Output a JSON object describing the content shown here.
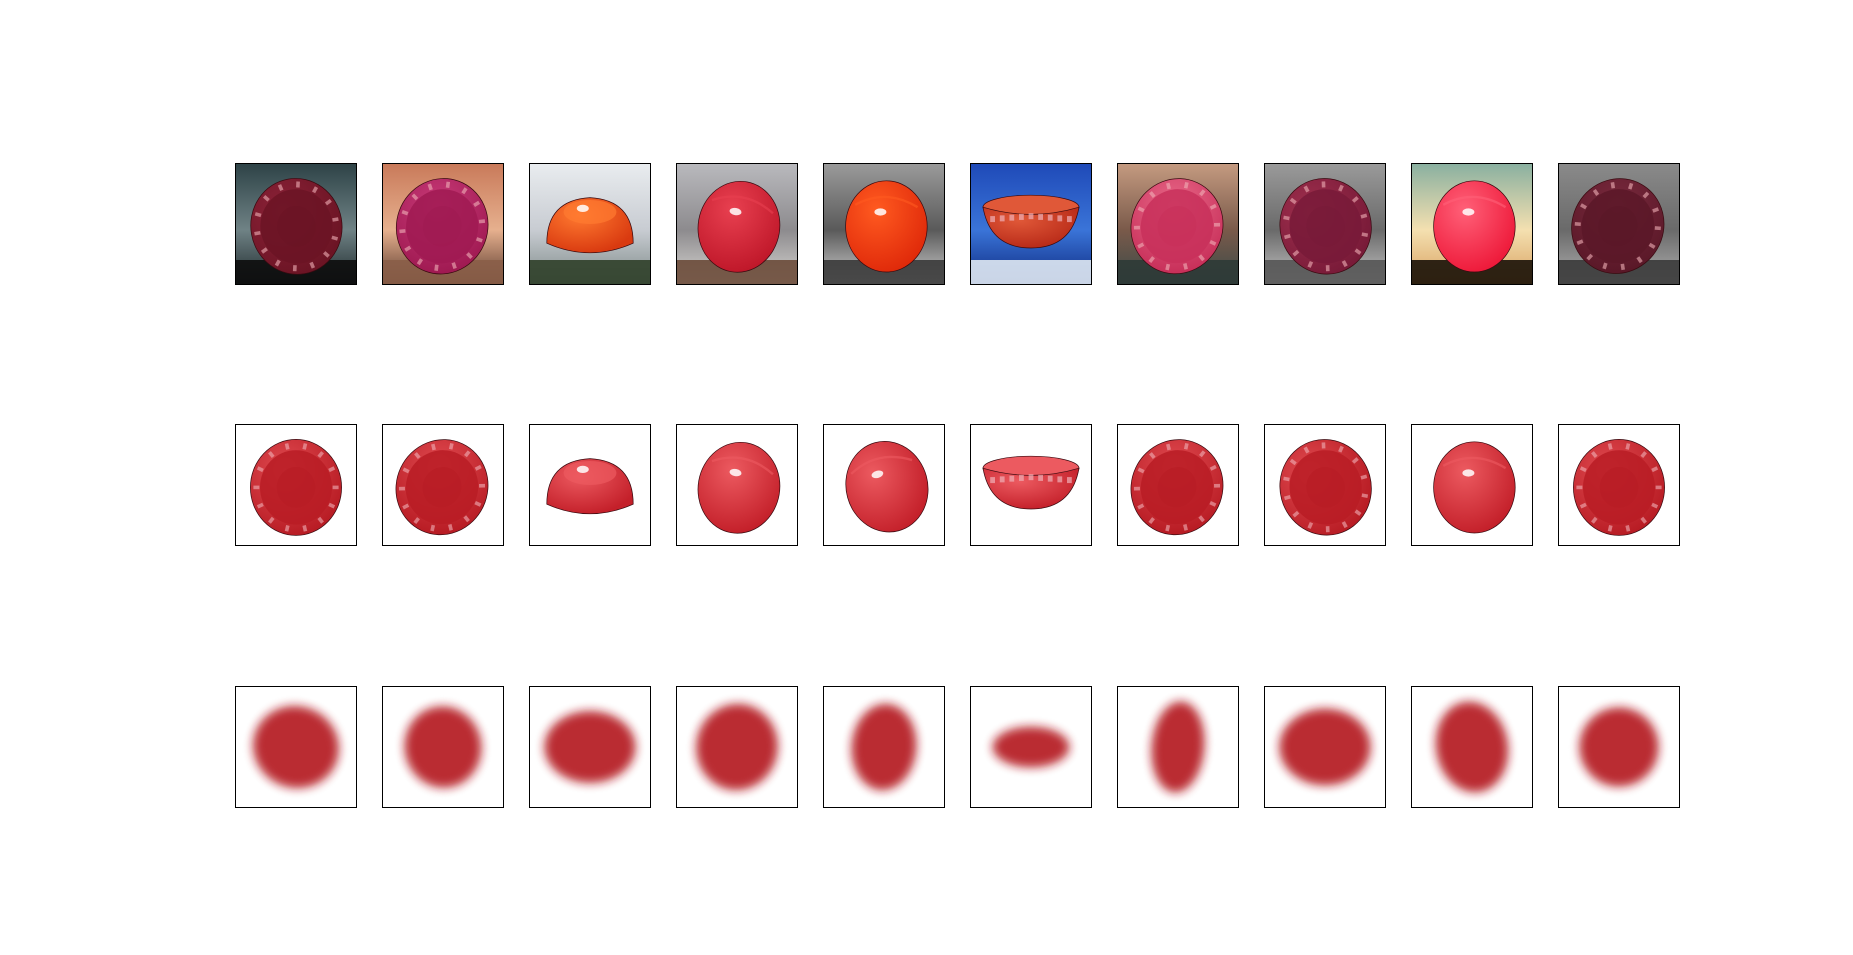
{
  "figure": {
    "rows": [
      {
        "kind": "composite",
        "cells": [
          {
            "bg": [
              "#2e4347",
              "#6f8285",
              "#1f2a2d"
            ],
            "ground": "#0d0d0d",
            "bowl": "#6b1424",
            "bowl_hi": "#8c2238",
            "pose": "rim",
            "tilt": -10
          },
          {
            "bg": [
              "#c97a5a",
              "#e6b08e",
              "#5a3a2e"
            ],
            "ground": "#8a5e48",
            "bowl": "#a01a52",
            "bowl_hi": "#c83a78",
            "pose": "rim",
            "tilt": 20
          },
          {
            "bg": [
              "#e9ecef",
              "#c8ccd2",
              "#7e8a88"
            ],
            "ground": "#30402a",
            "bowl": "#d93a10",
            "bowl_hi": "#ff7a30",
            "pose": "dome",
            "tilt": 0
          },
          {
            "bg": [
              "#b9b9bd",
              "#8d8b8e",
              "#d8d6d2"
            ],
            "ground": "#6b4b3a",
            "bowl": "#c0182a",
            "bowl_hi": "#e84050",
            "pose": "ball",
            "tilt": 10
          },
          {
            "bg": [
              "#9a9a9a",
              "#5a5a5a",
              "#d0d0d0"
            ],
            "ground": "#3a3a3a",
            "bowl": "#e02a0a",
            "bowl_hi": "#ff5a20",
            "pose": "ball",
            "tilt": 0
          },
          {
            "bg": [
              "#1f4ab8",
              "#3a74d8",
              "#0e2a80"
            ],
            "ground": "#dfe8f2",
            "bowl": "#b82a18",
            "bowl_hi": "#e05838",
            "pose": "bowl",
            "tilt": 0
          },
          {
            "bg": [
              "#c49a80",
              "#7a5a4a",
              "#3a4a48"
            ],
            "ground": "#2e3a36",
            "bowl": "#c8305a",
            "bowl_hi": "#e86888",
            "pose": "rim",
            "tilt": 25
          },
          {
            "bg": [
              "#9a9a9a",
              "#6a6a6a",
              "#c4c4c4"
            ],
            "ground": "#555555",
            "bowl": "#781a38",
            "bowl_hi": "#a0304e",
            "pose": "rim",
            "tilt": -15
          },
          {
            "bg": [
              "#8ab0a0",
              "#f4e0b0",
              "#d8a060"
            ],
            "ground": "#1a1208",
            "bowl": "#ee1a3a",
            "bowl_hi": "#ff6078",
            "pose": "ball",
            "tilt": 0
          },
          {
            "bg": [
              "#8a8a8a",
              "#6a6a6a",
              "#b0b0b0"
            ],
            "ground": "#3a3a3a",
            "bowl": "#5a1828",
            "bowl_hi": "#7a2a3e",
            "pose": "rim",
            "tilt": 30
          }
        ]
      },
      {
        "kind": "render",
        "cells": [
          {
            "bowl": "#b81c24",
            "bowl_hi": "#e04a50",
            "pose": "rim",
            "tilt": 0
          },
          {
            "bowl": "#b81c24",
            "bowl_hi": "#e04a50",
            "pose": "rim",
            "tilt": 25
          },
          {
            "bowl": "#c4202a",
            "bowl_hi": "#ec5a60",
            "pose": "dome",
            "tilt": 0
          },
          {
            "bowl": "#c4202a",
            "bowl_hi": "#ec5a60",
            "pose": "ball",
            "tilt": 10
          },
          {
            "bowl": "#c4202a",
            "bowl_hi": "#ec5a60",
            "pose": "ball",
            "tilt": -15
          },
          {
            "bowl": "#c4202a",
            "bowl_hi": "#ec5a60",
            "pose": "bowl",
            "tilt": 0
          },
          {
            "bowl": "#b81c24",
            "bowl_hi": "#e04a50",
            "pose": "rim",
            "tilt": 25
          },
          {
            "bowl": "#b81c24",
            "bowl_hi": "#e04a50",
            "pose": "rim",
            "tilt": -15
          },
          {
            "bowl": "#c4202a",
            "bowl_hi": "#ec5a60",
            "pose": "ball",
            "tilt": 0
          },
          {
            "bowl": "#b81c24",
            "bowl_hi": "#e04a50",
            "pose": "rim",
            "tilt": 0
          }
        ]
      },
      {
        "kind": "reconstruction",
        "cells": [
          {
            "blob": "#b3181e",
            "rx": 0.36,
            "ry": 0.34,
            "tilt": 20
          },
          {
            "blob": "#b3181e",
            "rx": 0.32,
            "ry": 0.34,
            "tilt": -10
          },
          {
            "blob": "#b3181e",
            "rx": 0.38,
            "ry": 0.3,
            "tilt": 0
          },
          {
            "blob": "#b3181e",
            "rx": 0.34,
            "ry": 0.36,
            "tilt": 10
          },
          {
            "blob": "#b3181e",
            "rx": 0.27,
            "ry": 0.36,
            "tilt": 5
          },
          {
            "blob": "#b3181e",
            "rx": 0.32,
            "ry": 0.17,
            "tilt": 0
          },
          {
            "blob": "#b3181e",
            "rx": 0.22,
            "ry": 0.38,
            "tilt": 5
          },
          {
            "blob": "#b3181e",
            "rx": 0.38,
            "ry": 0.32,
            "tilt": 0
          },
          {
            "blob": "#b3181e",
            "rx": 0.3,
            "ry": 0.38,
            "tilt": -10
          },
          {
            "blob": "#b3181e",
            "rx": 0.33,
            "ry": 0.33,
            "tilt": 25
          }
        ]
      }
    ]
  }
}
